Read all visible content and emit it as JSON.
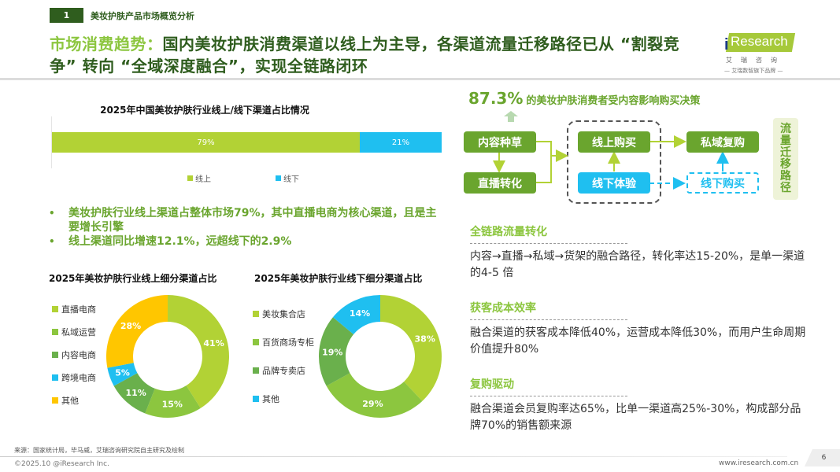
{
  "header": {
    "section_number": "1",
    "section_title": "美妆护肤产品市场概览分析",
    "title_highlight": "市场消费趋势：",
    "title_rest": "国内美妆护肤消费渠道以线上为主导，各渠道流量迁移路径已从 “割裂竞争” 转向 “全域深度融合”，实现全链路闭环"
  },
  "logo": {
    "brand": "Research",
    "brand_prefix": "i",
    "cn_name": "艾瑞咨询",
    "tagline": "— 艾瑞数智旗下品牌 —"
  },
  "colors": {
    "dark_green": "#2f5d1e",
    "green": "#6aa52e",
    "light_green": "#8cc63f",
    "lime": "#b2d235",
    "cyan": "#1fbff0",
    "yellow": "#ffc600",
    "mid_green": "#6ab04c"
  },
  "chart_data": [
    {
      "type": "bar",
      "orientation": "horizontal-stacked",
      "title": "2025年中国美妆护肤行业线上/线下渠道占比情况",
      "categories": [
        "线上",
        "线下"
      ],
      "values": [
        79,
        21
      ],
      "labels": [
        "79%",
        "21%"
      ],
      "colors": [
        "#b2d235",
        "#1fbff0"
      ],
      "legend_position": "bottom"
    },
    {
      "type": "pie",
      "variant": "donut",
      "title": "2025年美妆护肤行业线上细分渠道占比",
      "categories": [
        "直播电商",
        "私域运营",
        "内容电商",
        "跨境电商",
        "其他"
      ],
      "values": [
        41,
        15,
        11,
        5,
        28
      ],
      "labels": [
        "41%",
        "15%",
        "11%",
        "5%",
        "28%"
      ],
      "colors": [
        "#b2d235",
        "#8cc63f",
        "#6ab04c",
        "#1fbff0",
        "#ffc600"
      ],
      "legend_position": "left"
    },
    {
      "type": "pie",
      "variant": "donut",
      "title": "2025年美妆护肤行业线下细分渠道占比",
      "categories": [
        "美妆集合店",
        "百货商场专柜",
        "品牌专卖店",
        "其他"
      ],
      "values": [
        38,
        29,
        19,
        14
      ],
      "labels": [
        "38%",
        "29%",
        "19%",
        "14%"
      ],
      "colors": [
        "#b2d235",
        "#8cc63f",
        "#6ab04c",
        "#1fbff0"
      ],
      "legend_position": "left"
    }
  ],
  "bar_chart": {
    "title": "2025年中国美妆护肤行业线上/线下渠道占比情况",
    "online_label": "79%",
    "offline_label": "21%",
    "legend_online": "线上",
    "legend_offline": "线下"
  },
  "bullets": [
    "美妆护肤行业线上渠道占整体市场79%，其中直播电商为核心渠道，且是主要增长引擎",
    "线上渠道同比增速12.1%，远超线下的2.9%"
  ],
  "donut_online": {
    "title": "2025年美妆护肤行业线上细分渠道占比",
    "legend": [
      "直播电商",
      "私域运营",
      "内容电商",
      "跨境电商",
      "其他"
    ]
  },
  "donut_offline": {
    "title": "2025年美妆护肤行业线下细分渠道占比",
    "legend": [
      "美妆集合店",
      "百货商场专柜",
      "品牌专卖店",
      "其他"
    ]
  },
  "flow": {
    "headline_value": "87.3%",
    "headline_text": "的美妆护肤消费者受内容影响购买决策",
    "content_seed": "内容种草",
    "live_convert": "直播转化",
    "online_buy": "线上购买",
    "offline_experience": "线下体验",
    "private_repurchase": "私域复购",
    "offline_buy": "线下购买",
    "side_label": "流量迁移路径"
  },
  "info": [
    {
      "heading": "全链路流量转化",
      "text": "内容→直播→私域→货架的融合路径，转化率达15-20%，是单一渠道的4-5 倍"
    },
    {
      "heading": "获客成本效率",
      "text": "融合渠道的获客成本降低40%，运营成本降低30%，而用户生命周期价值提升80%"
    },
    {
      "heading": "复购驱动",
      "text": "融合渠道会员复购率达65%，比单一渠道高25%-30%，构成部分品牌70%的销售额来源"
    }
  ],
  "footer": {
    "source": "来源：国家统计局，毕马威，艾瑞咨询研究院自主研究及绘制",
    "copyright": "©2025.10 @iResearch Inc.",
    "website": "www.iresearch.com.cn",
    "page_number": "6"
  }
}
